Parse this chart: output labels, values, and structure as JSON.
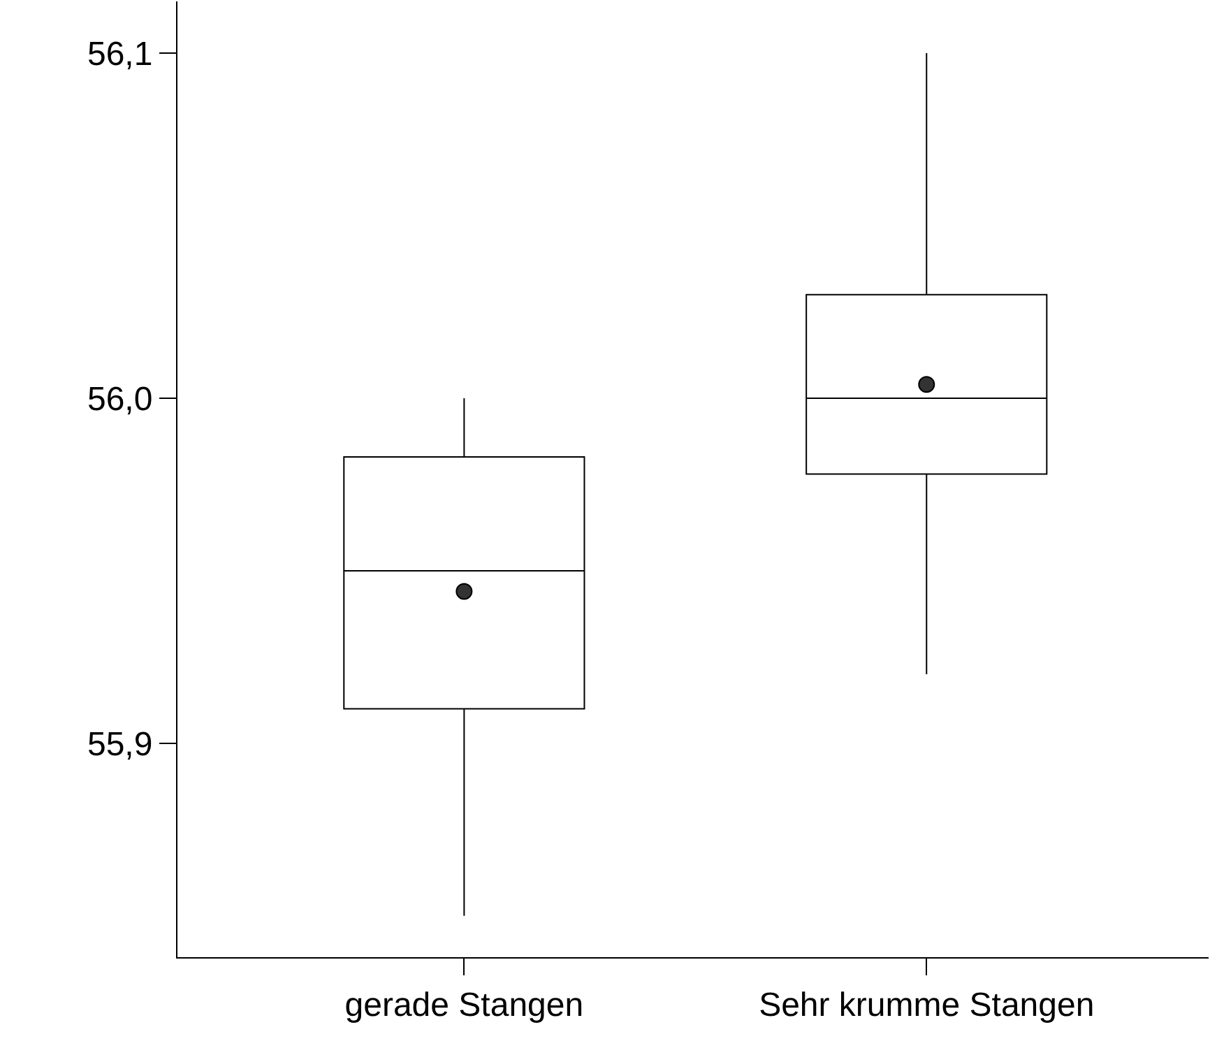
{
  "chart_data": {
    "type": "box",
    "categories": [
      "gerade Stangen",
      "Sehr krumme Stangen"
    ],
    "boxes": [
      {
        "low": 55.85,
        "q1": 55.91,
        "median": 55.95,
        "q3": 55.983,
        "high": 56.0,
        "mean": 55.944
      },
      {
        "low": 55.92,
        "q1": 55.978,
        "median": 56.0,
        "q3": 56.03,
        "high": 56.1,
        "mean": 56.004
      }
    ],
    "color": "#000000",
    "ylim": [
      55.838,
      56.115
    ],
    "yticks": [
      {
        "value": 55.9,
        "label": "55,9"
      },
      {
        "value": 56.0,
        "label": "56,0"
      },
      {
        "value": 56.1,
        "label": "56,1"
      }
    ],
    "marker": "circle"
  }
}
